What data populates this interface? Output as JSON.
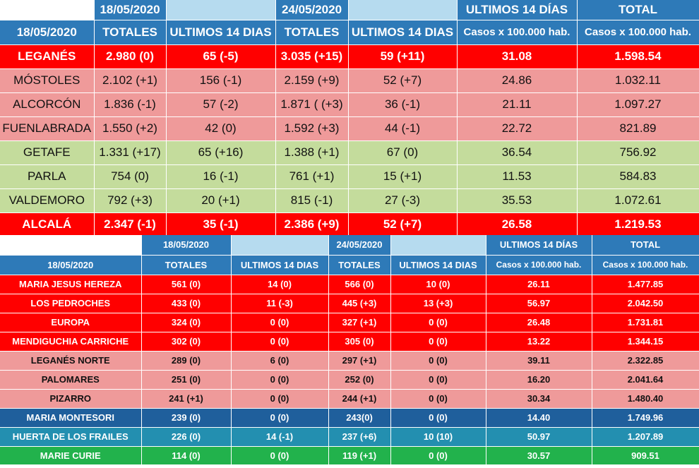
{
  "municipios": {
    "date_row": [
      "18/05/2020",
      "",
      "24/05/2020",
      "",
      "ULTIMOS 14 DÍAS",
      "TOTAL"
    ],
    "header": [
      "18/05/2020",
      "TOTALES",
      "ULTIMOS 14 DIAS",
      "TOTALES",
      "ULTIMOS 14 DIAS",
      "Casos x 100.000 hab.",
      "Casos x 100.000 hab."
    ],
    "rows": [
      {
        "cells": [
          "LEGANÉS",
          "2.980 (0)",
          "65 (-5)",
          "3.035 (+15)",
          "59 (+11)",
          "31.08",
          "1.598.54"
        ]
      },
      {
        "cells": [
          "MÓSTOLES",
          "2.102 (+1)",
          "156 (-1)",
          "2.159 (+9)",
          "52 (+7)",
          "24.86",
          "1.032.11"
        ]
      },
      {
        "cells": [
          "ALCORCÓN",
          "1.836 (-1)",
          "57 (-2)",
          "1.871 ( (+3)",
          "36 (-1)",
          "21.11",
          "1.097.27"
        ]
      },
      {
        "cells": [
          "FUENLABRADA",
          "1.550 (+2)",
          "42 (0)",
          "1.592 (+3)",
          "44 (-1)",
          "22.72",
          "821.89"
        ]
      },
      {
        "cells": [
          "GETAFE",
          "1.331 (+17)",
          "65 (+16)",
          "1.388  (+1)",
          "67 (0)",
          "36.54",
          "756.92"
        ]
      },
      {
        "cells": [
          "PARLA",
          "754 (0)",
          "16 (-1)",
          "761 (+1)",
          "15 (+1)",
          "11.53",
          "584.83"
        ]
      },
      {
        "cells": [
          "VALDEMORO",
          "792 (+3)",
          "20 (+1)",
          "815  (-1)",
          "27 (-3)",
          "35.53",
          "1.072.61"
        ]
      },
      {
        "cells": [
          "ALCALÁ",
          "2.347 (-1)",
          "35 (-1)",
          "2.386 (+9)",
          "52 (+7)",
          "26.58",
          "1.219.53"
        ]
      }
    ],
    "row_colors": {
      "red": "#ff0000",
      "pink": "#ef9a9a",
      "green": "#c4dc9c"
    }
  },
  "centros": {
    "date_row": [
      "",
      "18/05/2020",
      "",
      "24/05/2020",
      "",
      "ULTIMOS 14 DÍAS",
      "TOTAL"
    ],
    "header": [
      "18/05/2020",
      "TOTALES",
      "ULTIMOS 14 DIAS",
      "TOTALES",
      "ULTIMOS 14 DIAS",
      "Casos x 100.000 hab.",
      "Casos x 100.000 hab."
    ],
    "rows": [
      {
        "cells": [
          "MARIA JESUS HEREZA",
          "561 (0)",
          "14 (0)",
          "566 (0)",
          "10 (0)",
          "26.11",
          "1.477.85"
        ]
      },
      {
        "cells": [
          "LOS PEDROCHES",
          "433 (0)",
          "11 (-3)",
          "445 (+3)",
          "13 (+3)",
          "56.97",
          "2.042.50"
        ]
      },
      {
        "cells": [
          "EUROPA",
          "324 (0)",
          "0 (0)",
          "327 (+1)",
          "0 (0)",
          "26.48",
          "1.731.81"
        ]
      },
      {
        "cells": [
          "MENDIGUCHIA CARRICHE",
          "302 (0)",
          "0 (0)",
          "305 (0)",
          "0 (0)",
          "13.22",
          "1.344.15"
        ]
      },
      {
        "cells": [
          "LEGANÉS NORTE",
          "289 (0)",
          "6 (0)",
          "297 (+1)",
          "0 (0)",
          "39.11",
          "2.322.85"
        ]
      },
      {
        "cells": [
          "PALOMARES",
          "251 (0)",
          "0 (0)",
          "252 (0)",
          "0 (0)",
          "16.20",
          "2.041.64"
        ]
      },
      {
        "cells": [
          "PIZARRO",
          "241 (+1)",
          "0 (0)",
          "244 (+1)",
          "0 (0)",
          "30.34",
          "1.480.40"
        ]
      },
      {
        "cells": [
          "MARIA MONTESORI",
          "239 (0)",
          "0 (0)",
          "243(0)",
          "0 (0)",
          "14.40",
          "1.749.96"
        ]
      },
      {
        "cells": [
          "HUERTA DE LOS FRAILES",
          "226 (0)",
          "14 (-1)",
          "237 (+6)",
          "10 (10)",
          "50.97",
          "1.207.89"
        ]
      },
      {
        "cells": [
          "MARIE CURIE",
          "114 (0)",
          "0 (0)",
          "119 (+1)",
          "0 (0)",
          "30.57",
          "909.51"
        ]
      }
    ],
    "row_colors": {
      "red": "#ff0000",
      "pink": "#ef9a9a",
      "navy": "#1f5f9c",
      "teal": "#238fb0",
      "green": "#22b24c"
    }
  },
  "header_colors": {
    "blue": "#2e7ab8",
    "light_blue": "#b6dbef"
  }
}
